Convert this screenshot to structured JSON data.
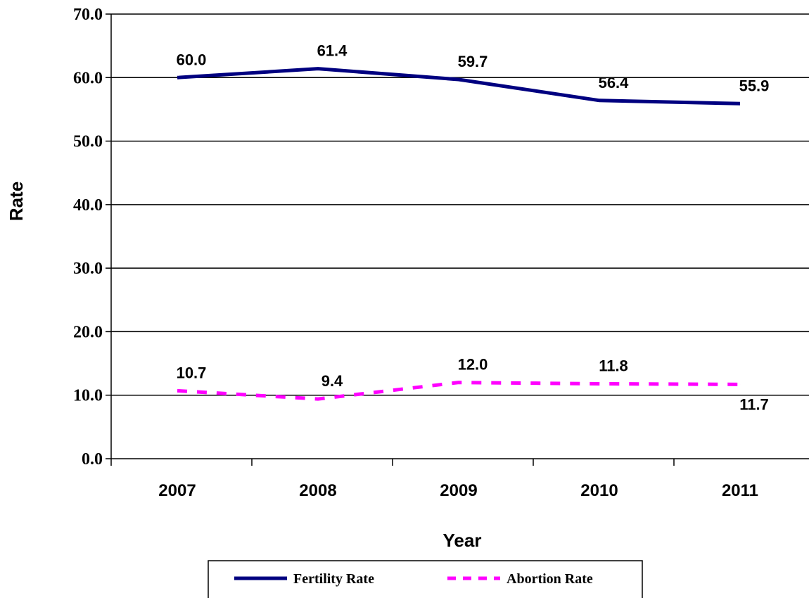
{
  "chart_data": {
    "type": "line",
    "title": "",
    "xlabel": "Year",
    "ylabel": "Rate",
    "categories": [
      "2007",
      "2008",
      "2009",
      "2010",
      "2011"
    ],
    "ylim": [
      0,
      70
    ],
    "ytick_labels": [
      "0.0",
      "10.0",
      "20.0",
      "30.0",
      "40.0",
      "50.0",
      "60.0",
      "70.0"
    ],
    "grid": true,
    "legend_position": "bottom",
    "series": [
      {
        "name": "Fertility Rate",
        "values": [
          60.0,
          61.4,
          59.7,
          56.4,
          55.9
        ],
        "labels": [
          "60.0",
          "61.4",
          "59.7",
          "56.4",
          "55.9"
        ],
        "color": "#000080",
        "style": "solid"
      },
      {
        "name": "Abortion Rate",
        "values": [
          10.7,
          9.4,
          12.0,
          11.8,
          11.7
        ],
        "labels": [
          "10.7",
          "9.4",
          "12.0",
          "11.8",
          "11.7"
        ],
        "color": "#ff00ff",
        "style": "dashed"
      }
    ]
  }
}
